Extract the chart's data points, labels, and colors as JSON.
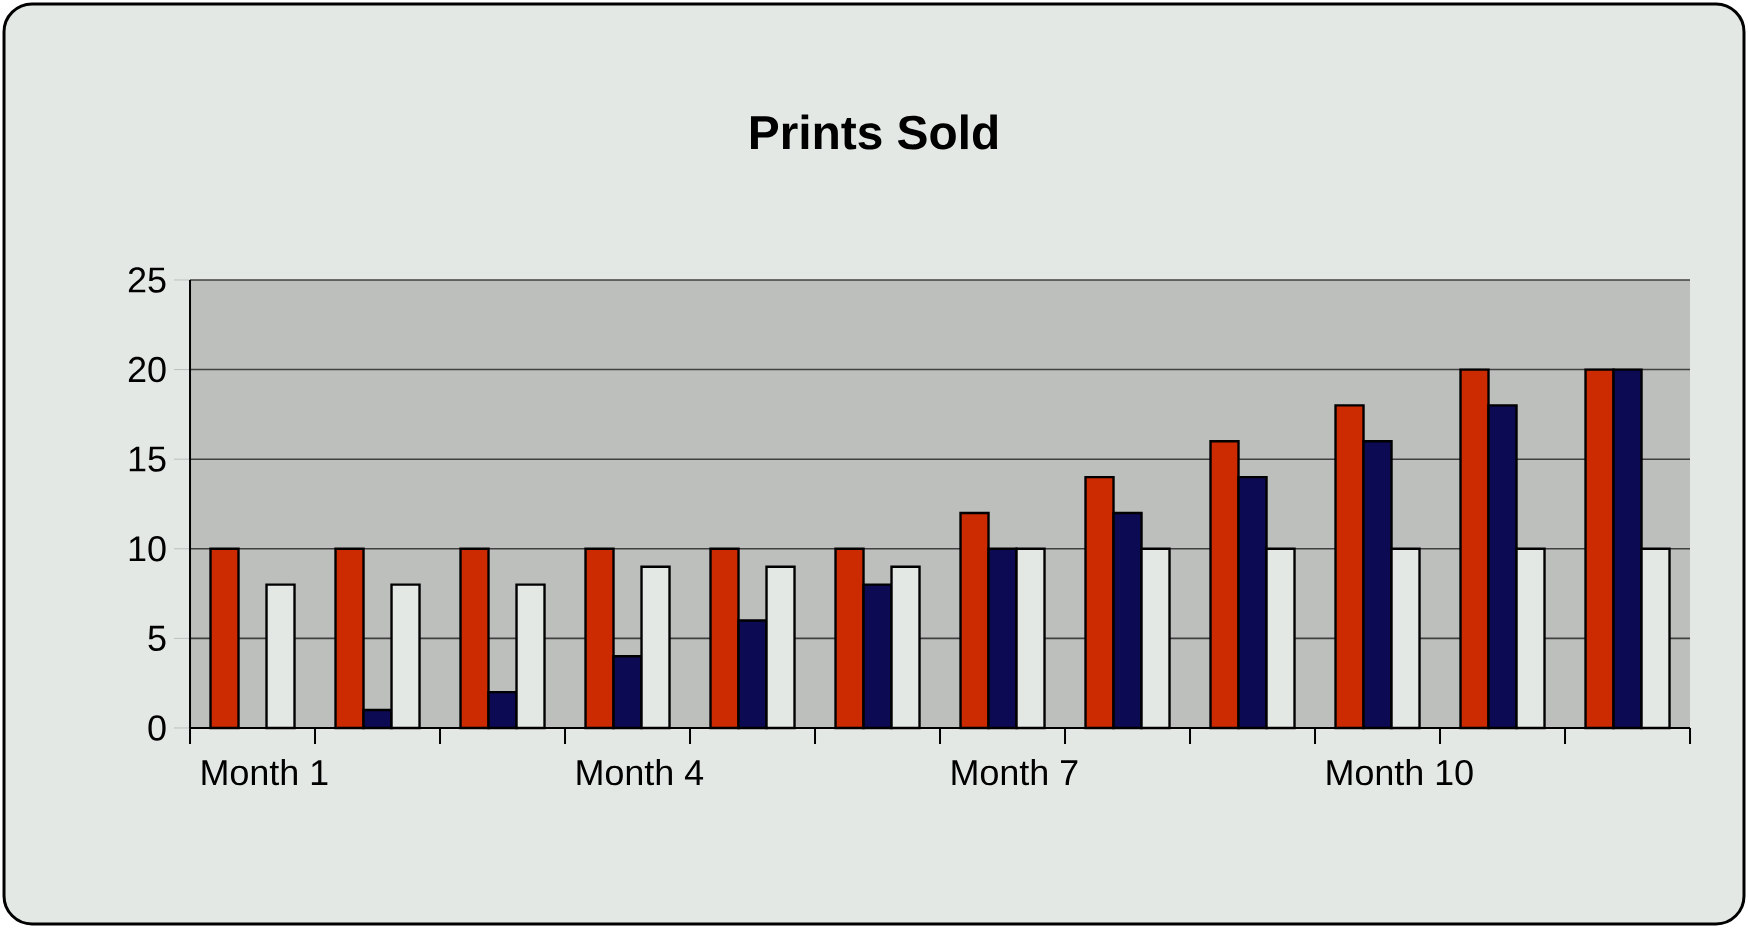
{
  "chart_data": {
    "type": "bar",
    "title": "Prints Sold",
    "categories": [
      "Month 1",
      null,
      null,
      "Month 4",
      null,
      null,
      "Month 7",
      null,
      null,
      "Month 10",
      null,
      null
    ],
    "series": [
      {
        "color": "#cc2a00",
        "values": [
          10,
          10,
          10,
          10,
          10,
          10,
          12,
          14,
          16,
          18,
          20,
          20
        ]
      },
      {
        "color": "#0c0a52",
        "values": [
          null,
          1,
          2,
          4,
          6,
          8,
          10,
          12,
          14,
          16,
          18,
          20
        ]
      },
      {
        "color": "#e4e8e4",
        "values": [
          8,
          8,
          8,
          9,
          9,
          9,
          10,
          10,
          10,
          10,
          10,
          10
        ]
      }
    ],
    "ylim": [
      0,
      25
    ],
    "yticks": [
      0,
      5,
      10,
      15,
      20,
      25
    ],
    "grid": "y"
  }
}
